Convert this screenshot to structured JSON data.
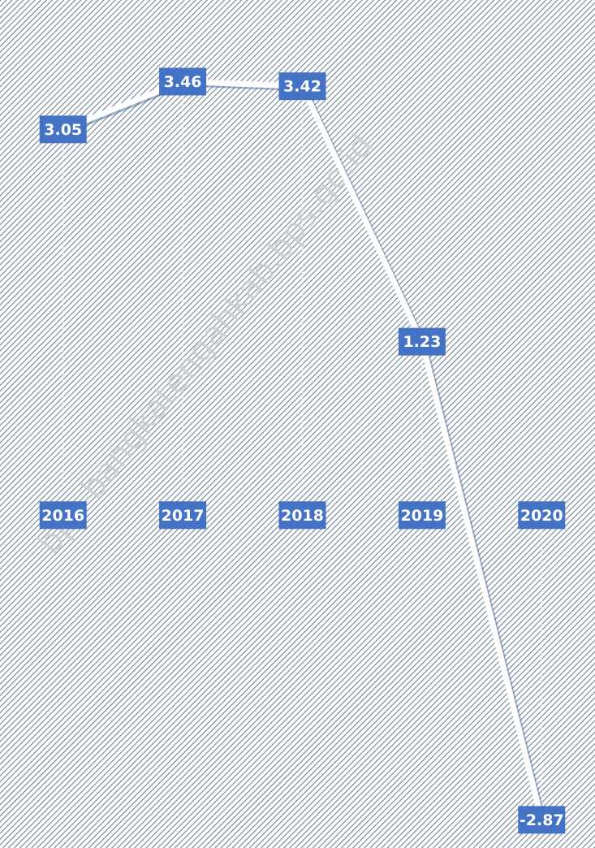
{
  "chart_data": {
    "type": "line",
    "watermark": "bps-bangkatengahkab.bps.go.id",
    "categories": [
      "2016",
      "2017",
      "2018",
      "2019",
      "2020"
    ],
    "values": [
      3.05,
      3.46,
      3.42,
      1.23,
      -2.87
    ],
    "color": "#ffffff",
    "label_color": "#4472c4",
    "ylim": [
      -3,
      3.7
    ],
    "drop_lines": true
  }
}
